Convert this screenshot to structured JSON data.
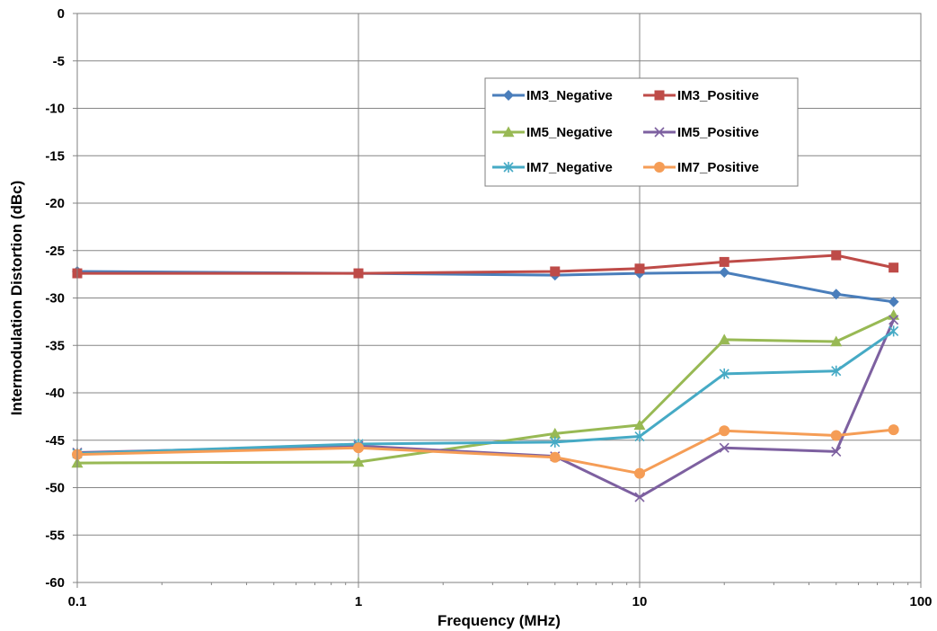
{
  "chart_data": {
    "type": "line",
    "xlabel": "Frequency (MHz)",
    "ylabel": "Intermodulation Distortion (dBc)",
    "x_scale": "log",
    "xlim": [
      0.1,
      100
    ],
    "ylim": [
      -60,
      0
    ],
    "x_ticks": [
      0.1,
      1,
      10,
      100
    ],
    "x_tick_labels": [
      "0.1",
      "1",
      "10",
      "100"
    ],
    "y_ticks": [
      0,
      -5,
      -10,
      -15,
      -20,
      -25,
      -30,
      -35,
      -40,
      -45,
      -50,
      -55,
      -60
    ],
    "y_tick_labels": [
      "0",
      "-5",
      "-10",
      "-15",
      "-20",
      "-25",
      "-30",
      "-35",
      "-40",
      "-45",
      "-50",
      "-55",
      "-60"
    ],
    "grid": true,
    "legend_position": "top-right",
    "x": [
      0.1,
      1,
      5,
      10,
      20,
      50,
      80
    ],
    "series": [
      {
        "name": "IM3_Negative",
        "color": "#4A7EBB",
        "marker": "diamond",
        "values": [
          -27.2,
          -27.4,
          -27.6,
          -27.4,
          -27.3,
          -29.6,
          -30.4
        ]
      },
      {
        "name": "IM3_Positive",
        "color": "#BE4B48",
        "marker": "square",
        "values": [
          -27.4,
          -27.4,
          -27.2,
          -26.9,
          -26.2,
          -25.5,
          -26.8
        ]
      },
      {
        "name": "IM5_Negative",
        "color": "#98B954",
        "marker": "triangle",
        "values": [
          -47.4,
          -47.3,
          -44.3,
          -43.4,
          -34.4,
          -34.6,
          -31.8
        ]
      },
      {
        "name": "IM5_Positive",
        "color": "#7D60A0",
        "marker": "x",
        "values": [
          -46.3,
          -45.6,
          -46.7,
          -51.0,
          -45.8,
          -46.2,
          -32.3
        ]
      },
      {
        "name": "IM7_Negative",
        "color": "#46AAC5",
        "marker": "star",
        "values": [
          -46.4,
          -45.4,
          -45.2,
          -44.6,
          -38.0,
          -37.7,
          -33.5
        ]
      },
      {
        "name": "IM7_Positive",
        "color": "#F59D56",
        "marker": "circle",
        "values": [
          -46.5,
          -45.8,
          -46.8,
          -48.5,
          -44.0,
          -44.5,
          -43.9
        ]
      }
    ]
  }
}
